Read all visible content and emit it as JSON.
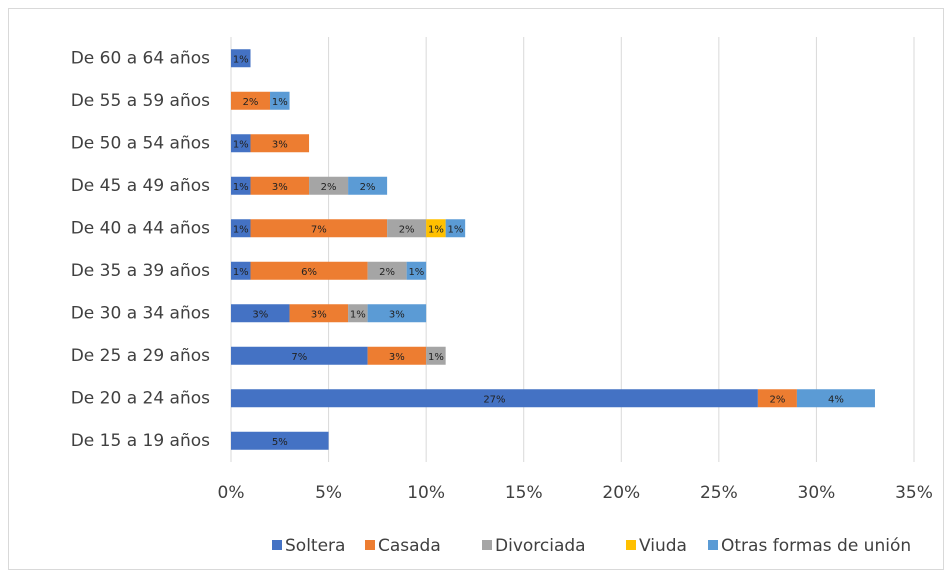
{
  "chart_data": {
    "type": "stacked-bar-horizontal",
    "categories": [
      "De 15 a 19 años",
      "De 20 a 24 años",
      "De 25 a 29 años",
      "De 30 a 34 años",
      "De 35 a 39 años",
      "De 40 a 44 años",
      "De 45 a 49 años",
      "De 50 a 54 años",
      "De 55 a 59 años",
      "De 60 a 64 años"
    ],
    "series": [
      {
        "name": "Soltera",
        "color": "#4472c4",
        "values": [
          5,
          27,
          7,
          3,
          1,
          1,
          1,
          1,
          null,
          1
        ],
        "value_labels": [
          "5%",
          "27%",
          "7%",
          "3%",
          "1%",
          "1%",
          "1%",
          "1%",
          null,
          "1%"
        ]
      },
      {
        "name": "Casada",
        "color": "#ed7d31",
        "values": [
          null,
          2,
          3,
          3,
          6,
          7,
          3,
          3,
          2,
          null
        ],
        "value_labels": [
          null,
          "2%",
          "3%",
          "3%",
          "6%",
          "7%",
          "3%",
          "3%",
          "2%",
          null
        ]
      },
      {
        "name": "Divorciada",
        "color": "#a5a5a5",
        "values": [
          null,
          null,
          1,
          1,
          2,
          2,
          2,
          null,
          null,
          null
        ],
        "value_labels": [
          null,
          null,
          "1%",
          "1%",
          "2%",
          "2%",
          "2%",
          null,
          null,
          null
        ]
      },
      {
        "name": "Viuda",
        "color": "#ffc000",
        "values": [
          null,
          null,
          null,
          null,
          null,
          1,
          null,
          null,
          null,
          null
        ],
        "value_labels": [
          null,
          null,
          null,
          null,
          null,
          "1%",
          null,
          null,
          null,
          null
        ]
      },
      {
        "name": "Otras formas de unión",
        "color": "#5b9bd5",
        "values": [
          null,
          4,
          null,
          3,
          1,
          1,
          2,
          null,
          1,
          null
        ],
        "value_labels": [
          null,
          "4%",
          null,
          "3%",
          "1%",
          "1%",
          "2%",
          null,
          "1%",
          null
        ]
      }
    ],
    "xlim": [
      0,
      35
    ],
    "xticks": [
      {
        "value": 0,
        "label": "0%"
      },
      {
        "value": 5,
        "label": "5%"
      },
      {
        "value": 10,
        "label": "10%"
      },
      {
        "value": 15,
        "label": "15%"
      },
      {
        "value": 20,
        "label": "20%"
      },
      {
        "value": 25,
        "label": "25%"
      },
      {
        "value": 30,
        "label": "30%"
      },
      {
        "value": 35,
        "label": "35%"
      }
    ],
    "grid": true,
    "legend": "bottom"
  }
}
